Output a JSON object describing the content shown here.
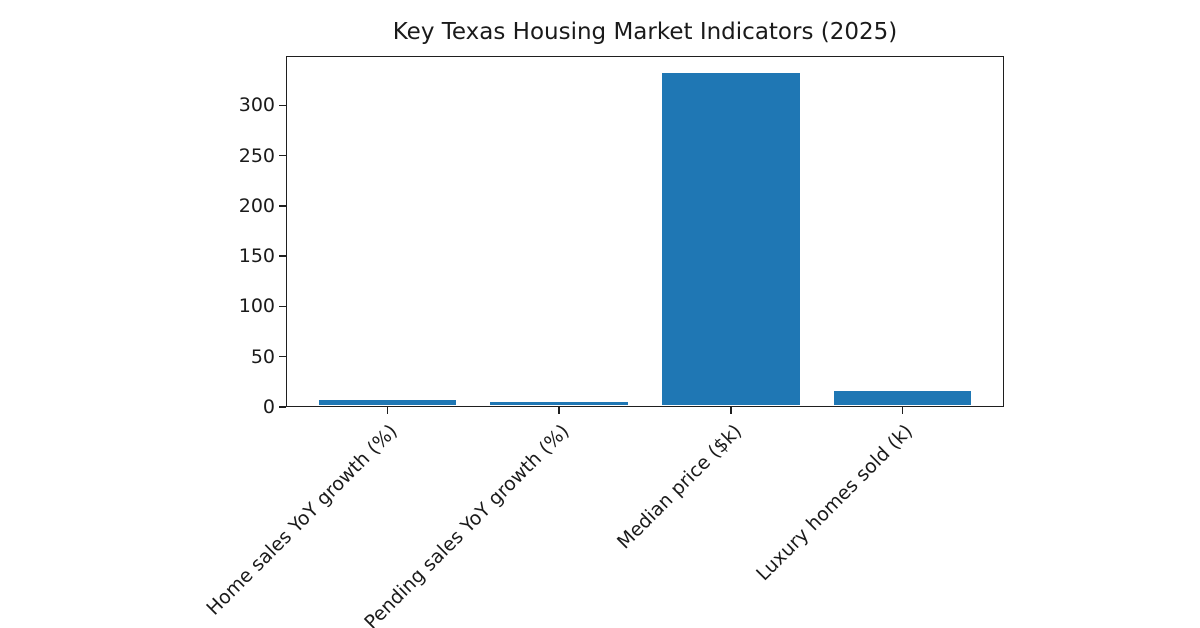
{
  "figure": {
    "title": "Key Texas Housing Market Indicators (2025)"
  },
  "chart_data": {
    "type": "bar",
    "title": "Key Texas Housing Market Indicators (2025)",
    "categories": [
      "Home sales YoY growth (%)",
      "Pending sales YoY growth (%)",
      "Median price ($k)",
      "Luxury homes sold (k)"
    ],
    "values": [
      7,
      5,
      332,
      16
    ],
    "series": [
      {
        "name": "value",
        "values": [
          7,
          5,
          332,
          16
        ]
      }
    ],
    "bar_color": "#1f77b4",
    "xlabel": "",
    "ylabel": "",
    "ylim": [
      0,
      349
    ],
    "yticks": [
      0,
      50,
      100,
      150,
      200,
      250,
      300
    ],
    "xtick_rotation_deg": 45,
    "grid": false,
    "legend": false
  }
}
